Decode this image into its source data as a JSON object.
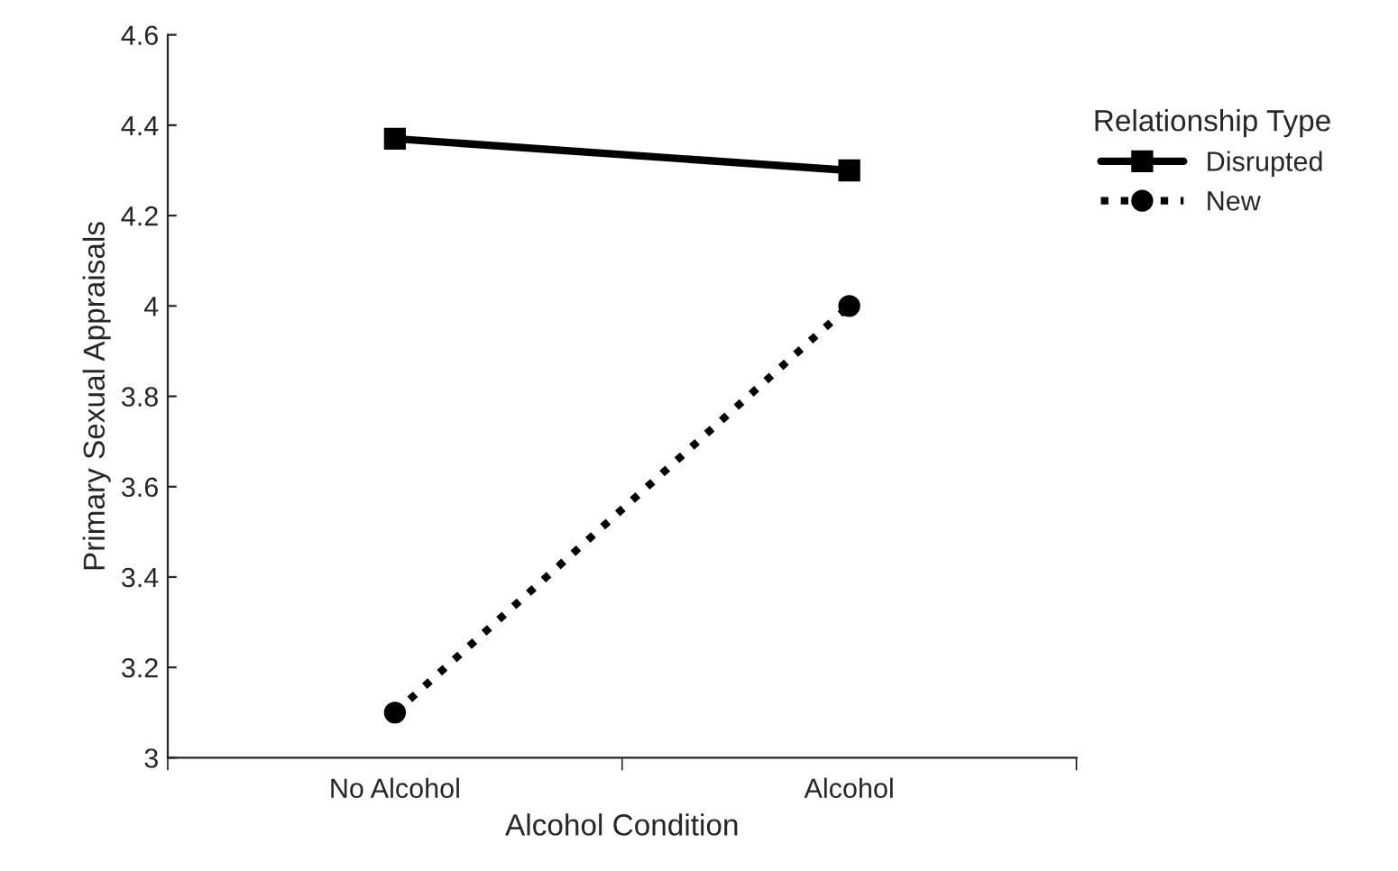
{
  "chart_data": {
    "type": "line",
    "xlabel": "Alcohol Condition",
    "ylabel": "Primary Sexual Appraisals",
    "legend_title": "Relationship Type",
    "categories": [
      "No Alcohol",
      "Alcohol"
    ],
    "series": [
      {
        "name": "Disrupted",
        "color": "#000000",
        "values": [
          4.37,
          4.3
        ],
        "marker": "square",
        "line_style": "solid"
      },
      {
        "name": "New",
        "color": "#000000",
        "values": [
          3.1,
          4.0
        ],
        "marker": "circle",
        "line_style": "dotted"
      }
    ],
    "ylim": [
      3,
      4.6
    ],
    "yticks": [
      3,
      3.2,
      3.4,
      3.6,
      3.8,
      4,
      4.2,
      4.4,
      4.6
    ],
    "grid": false,
    "legend": "right"
  }
}
